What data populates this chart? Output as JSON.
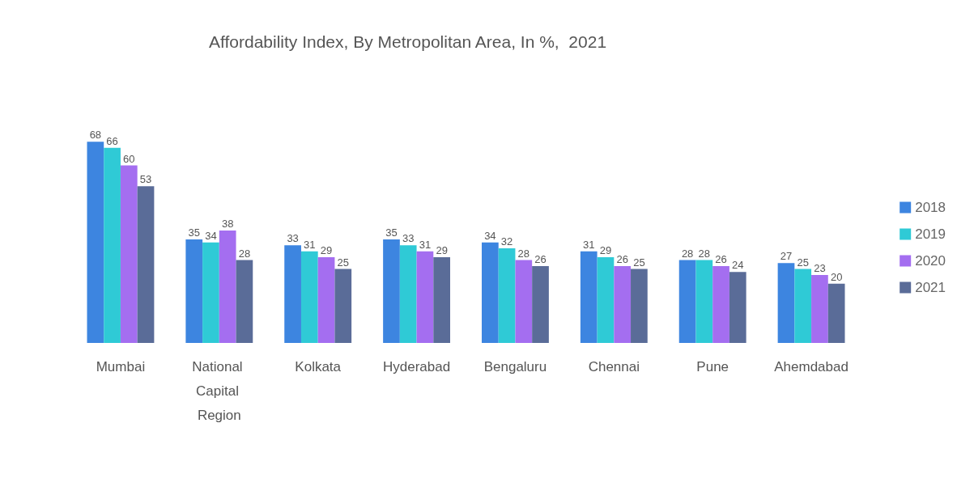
{
  "chart_data": {
    "type": "bar",
    "title": "Affordability Index, By Metropolitan Area, In %,  2021",
    "categories": [
      "Mumbai",
      "National Capital Region",
      "Kolkata",
      "Hyderabad",
      "Bengaluru",
      "Chennai",
      "Pune",
      "Ahemdabad"
    ],
    "series": [
      {
        "name": "2018",
        "color": "#3d85e0",
        "values": [
          68,
          35,
          33,
          35,
          34,
          31,
          28,
          27
        ]
      },
      {
        "name": "2019",
        "color": "#2fcad6",
        "values": [
          66,
          34,
          31,
          33,
          32,
          29,
          28,
          25
        ]
      },
      {
        "name": "2020",
        "color": "#a46ef0",
        "values": [
          60,
          38,
          29,
          31,
          28,
          26,
          26,
          23
        ]
      },
      {
        "name": "2021",
        "color": "#5a6c98",
        "values": [
          53,
          28,
          25,
          29,
          26,
          25,
          24,
          20
        ]
      }
    ],
    "data_labels": true,
    "legend": "right"
  }
}
